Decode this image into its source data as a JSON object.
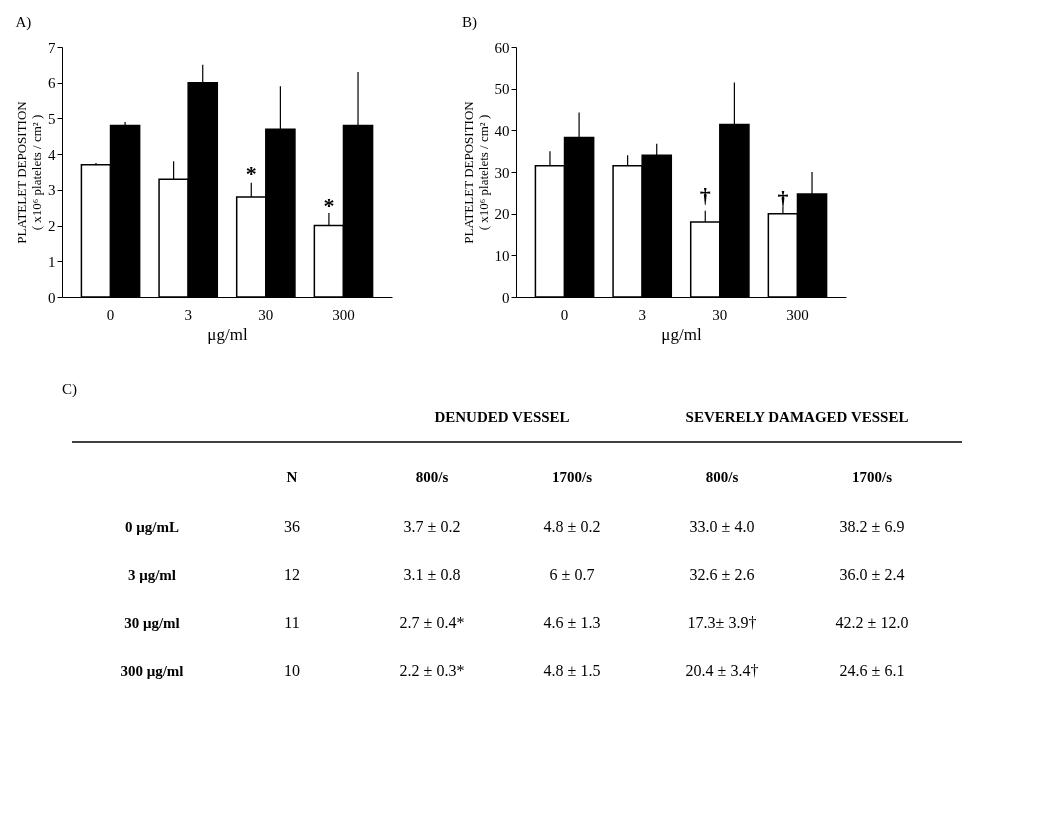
{
  "chart_data": [
    {
      "type": "bar",
      "title": "A)",
      "xlabel": "μg/ml",
      "ylabel": "PLATELET DEPOSITION\n( x10⁶ platelets / cm² )",
      "categories": [
        "0",
        "3",
        "30",
        "300"
      ],
      "ylim": [
        0,
        7
      ],
      "yticks": [
        0,
        1,
        2,
        3,
        4,
        5,
        6,
        7
      ],
      "series": [
        {
          "color": "#ffffff",
          "values": [
            3.7,
            3.3,
            2.8,
            2.0
          ],
          "errors": [
            [
              3.7,
              3.75
            ],
            [
              3.3,
              3.8
            ],
            [
              2.8,
              3.2
            ],
            [
              2.0,
              2.35
            ]
          ]
        },
        {
          "color": "#000000",
          "values": [
            4.8,
            6.0,
            4.7,
            4.8
          ],
          "errors": [
            [
              4.8,
              4.9
            ],
            [
              6.0,
              6.5
            ],
            [
              4.7,
              5.9
            ],
            [
              4.8,
              6.3
            ]
          ]
        }
      ],
      "annotations": [
        {
          "text": "*",
          "x": "30",
          "y": 3.45
        },
        {
          "text": "*",
          "x": "300",
          "y": 2.55
        }
      ]
    },
    {
      "type": "bar",
      "title": "B)",
      "xlabel": "μg/ml",
      "ylabel": "PLATELET DEPOSITION\n( x10⁶ platelets / cm² )",
      "categories": [
        "0",
        "3",
        "30",
        "300"
      ],
      "ylim": [
        0,
        60
      ],
      "yticks": [
        0,
        10,
        20,
        30,
        40,
        50,
        60
      ],
      "series": [
        {
          "color": "#ffffff",
          "values": [
            31.5,
            31.5,
            18,
            20
          ],
          "errors": [
            [
              31.5,
              35
            ],
            [
              31.5,
              34
            ],
            [
              18,
              20.7
            ],
            [
              20,
              21.5
            ]
          ]
        },
        {
          "color": "#000000",
          "values": [
            38.3,
            34,
            41.4,
            24.7
          ],
          "errors": [
            [
              38.3,
              44.3
            ],
            [
              34,
              36.8
            ],
            [
              41.4,
              51.5
            ],
            [
              24.7,
              30
            ]
          ]
        }
      ],
      "annotations": [
        {
          "text": "†",
          "x": "30",
          "y": 24.3
        },
        {
          "text": "†",
          "x": "300",
          "y": 23.5
        }
      ]
    },
    {
      "type": "other",
      "title": "C)",
      "annotations": [
        "DENUDED VESSEL",
        "SEVERELY DAMAGED VESSEL",
        "N",
        "800/s",
        "1700/s",
        "800/s",
        "1700/s",
        "0 μg/mL",
        "36",
        "3.7 ± 0.2",
        "4.8  ± 0.2",
        "33.0 ± 4.0",
        "38.2 ± 6.9",
        "3 μg/ml",
        "12",
        "3.1 ± 0.8",
        "6 ± 0.7",
        "32.6 ± 2.6",
        "36.0 ± 2.4",
        "30 μg/ml",
        "11",
        "2.7 ± 0.4*",
        "4.6 ± 1.3",
        "17.3± 3.9†",
        "42.2 ± 12.0",
        "300 μg/ml",
        "10",
        "2.2 ±  0.3*",
        "4.8 ± 1.5",
        "20.4 ± 3.4†",
        "24.6 ± 6.1"
      ]
    }
  ]
}
